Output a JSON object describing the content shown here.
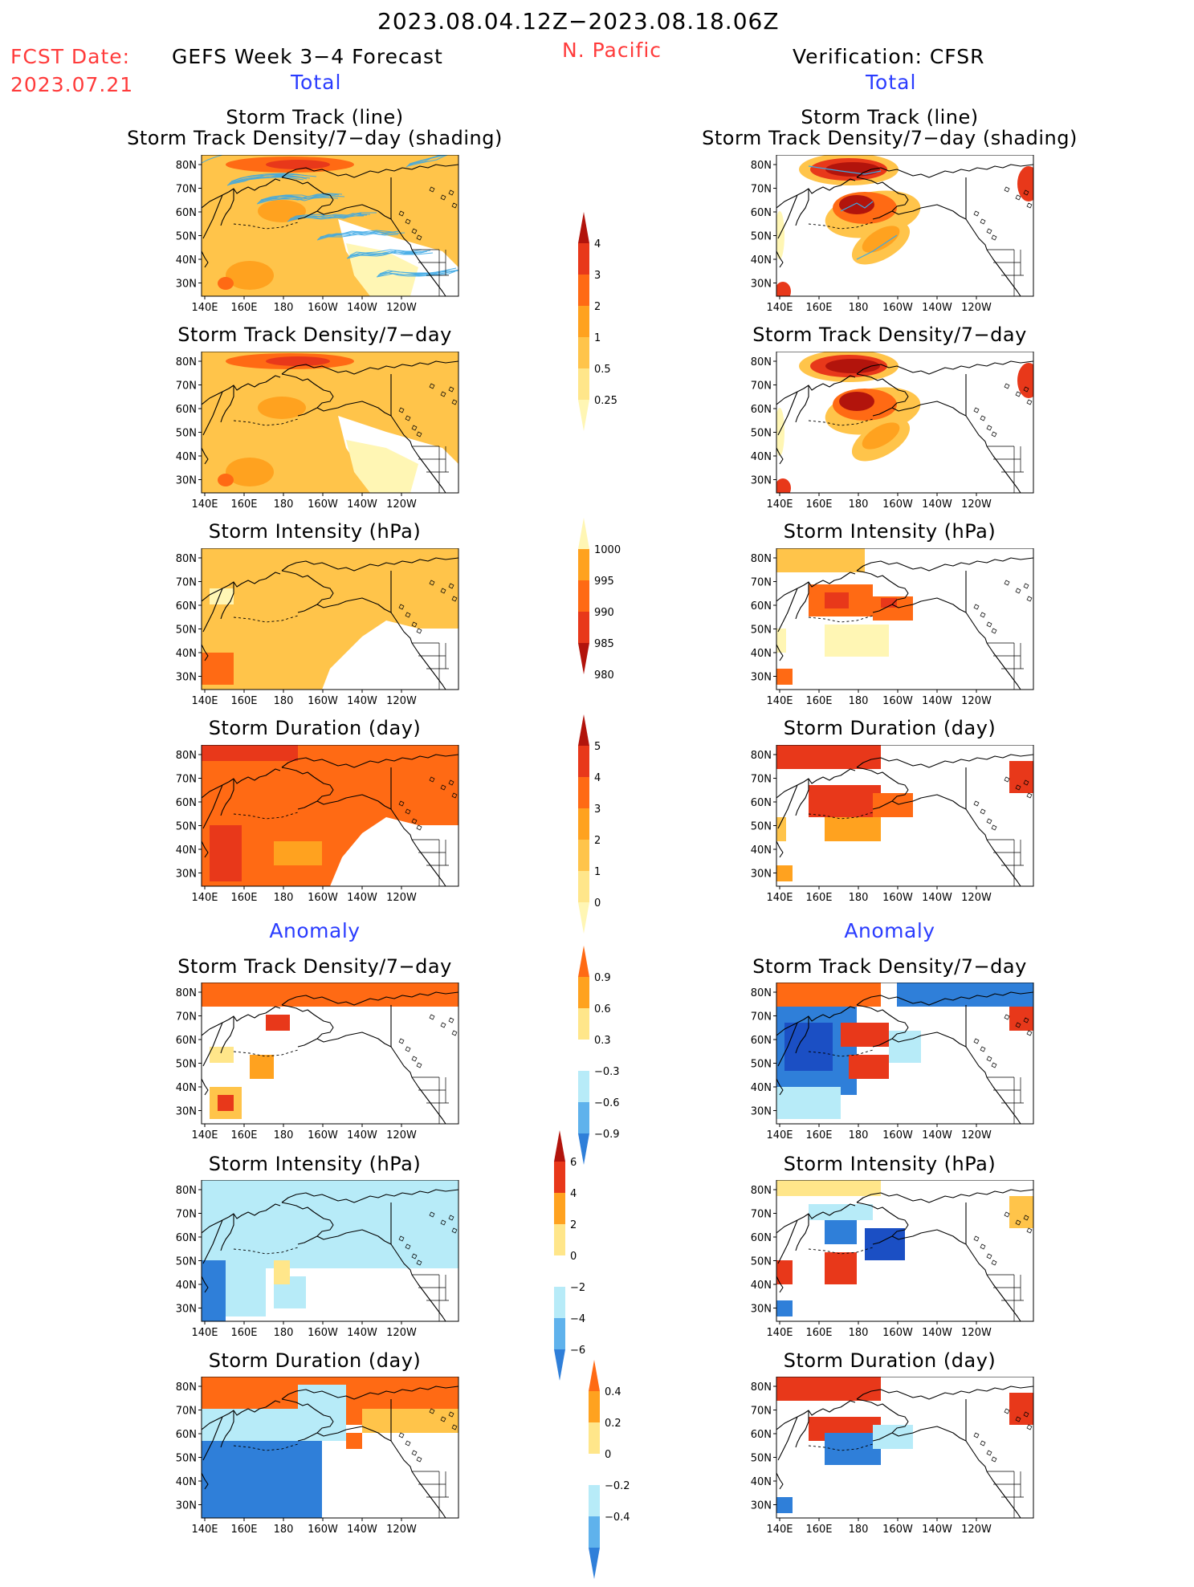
{
  "header": {
    "date_range": "2023.08.04.12Z−2023.08.18.06Z",
    "fcst_date_label": "FCST Date:",
    "fcst_date": "2023.07.21",
    "model": "GEFS Week 3−4 Forecast",
    "region": "N. Pacific",
    "verification": "Verification: CFSR",
    "total_left": "Total",
    "total_right": "Total",
    "anomaly_left": "Anomaly",
    "anomaly_right": "Anomaly"
  },
  "panel_titles": {
    "track_line": "Storm Track (line)",
    "track_shading": "Storm Track Density/7−day (shading)",
    "density": "Storm Track Density/7−day",
    "intensity": "Storm Intensity (hPa)",
    "duration": "Storm Duration (day)"
  },
  "axes": {
    "lat_labels": [
      "80N",
      "70N",
      "60N",
      "50N",
      "40N",
      "30N"
    ],
    "lon_labels": [
      "140E",
      "160E",
      "180",
      "160W",
      "140W",
      "120W"
    ]
  },
  "colorbars": [
    {
      "name": "density-colorbar",
      "labels": [
        "4",
        "3",
        "2",
        "1",
        "0.5",
        "0.25"
      ]
    },
    {
      "name": "intensity-colorbar",
      "labels": [
        "1000",
        "995",
        "990",
        "985",
        "980"
      ]
    },
    {
      "name": "duration-colorbar",
      "labels": [
        "5",
        "4",
        "3",
        "2",
        "1",
        "0"
      ]
    },
    {
      "name": "density-anomaly-colorbar",
      "labels": [
        "0.9",
        "0.6",
        "0.3",
        "−0.3",
        "−0.6",
        "−0.9"
      ]
    },
    {
      "name": "intensity-anomaly-colorbar",
      "labels": [
        "6",
        "4",
        "2",
        "0",
        "−2",
        "−4",
        "−6"
      ]
    },
    {
      "name": "duration-anomaly-colorbar",
      "labels": [
        "0.4",
        "0.2",
        "0",
        "−0.2",
        "−0.4"
      ]
    }
  ],
  "colors": {
    "very_light": "#fff6b4",
    "light_yellow": "#ffe68a",
    "yellow_orange": "#ffc44a",
    "orange": "#ffa21f",
    "dark_orange": "#ff6a14",
    "red": "#e8381a",
    "dark_red": "#b2140c",
    "light_blue": "#b7ebf8",
    "mid_blue": "#5fb2ec",
    "blue": "#2f7fd9",
    "dark_blue": "#1b4fc4",
    "track_line": "#3aa8e6",
    "header_red": "#ff3b3b",
    "header_blue": "#2a3cff"
  }
}
